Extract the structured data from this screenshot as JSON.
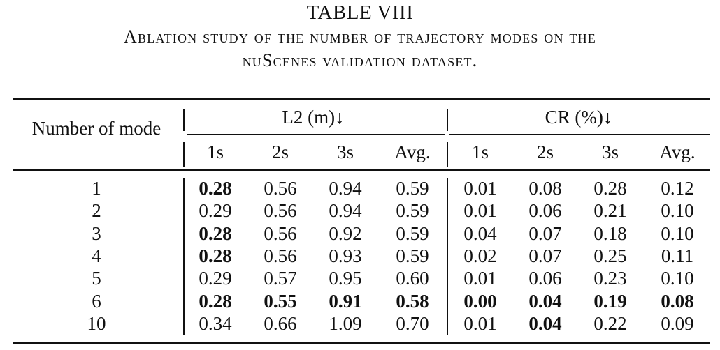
{
  "table_title": "TABLE VIII",
  "caption_line1": "Ablation study of the number of trajectory modes on the",
  "caption_line2": "nuScenes validation dataset.",
  "header": {
    "row_label": "Number of mode",
    "group_l2": "L2 (m)↓",
    "group_cr": "CR (%)↓",
    "sub": [
      "1s",
      "2s",
      "3s",
      "Avg.",
      "1s",
      "2s",
      "3s",
      "Avg."
    ]
  },
  "rows": [
    {
      "mode": "1",
      "values": [
        "0.28",
        "0.56",
        "0.94",
        "0.59",
        "0.01",
        "0.08",
        "0.28",
        "0.12"
      ],
      "bold": [
        true,
        false,
        false,
        false,
        false,
        false,
        false,
        false
      ]
    },
    {
      "mode": "2",
      "values": [
        "0.29",
        "0.56",
        "0.94",
        "0.59",
        "0.01",
        "0.06",
        "0.21",
        "0.10"
      ],
      "bold": [
        false,
        false,
        false,
        false,
        false,
        false,
        false,
        false
      ]
    },
    {
      "mode": "3",
      "values": [
        "0.28",
        "0.56",
        "0.92",
        "0.59",
        "0.04",
        "0.07",
        "0.18",
        "0.10"
      ],
      "bold": [
        true,
        false,
        false,
        false,
        false,
        false,
        false,
        false
      ]
    },
    {
      "mode": "4",
      "values": [
        "0.28",
        "0.56",
        "0.93",
        "0.59",
        "0.02",
        "0.07",
        "0.25",
        "0.11"
      ],
      "bold": [
        true,
        false,
        false,
        false,
        false,
        false,
        false,
        false
      ]
    },
    {
      "mode": "5",
      "values": [
        "0.29",
        "0.57",
        "0.95",
        "0.60",
        "0.01",
        "0.06",
        "0.23",
        "0.10"
      ],
      "bold": [
        false,
        false,
        false,
        false,
        false,
        false,
        false,
        false
      ]
    },
    {
      "mode": "6",
      "values": [
        "0.28",
        "0.55",
        "0.91",
        "0.58",
        "0.00",
        "0.04",
        "0.19",
        "0.08"
      ],
      "bold": [
        true,
        true,
        true,
        true,
        true,
        true,
        true,
        true
      ]
    },
    {
      "mode": "10",
      "values": [
        "0.34",
        "0.66",
        "1.09",
        "0.70",
        "0.01",
        "0.04",
        "0.22",
        "0.09"
      ],
      "bold": [
        false,
        false,
        false,
        false,
        false,
        true,
        false,
        false
      ]
    }
  ]
}
